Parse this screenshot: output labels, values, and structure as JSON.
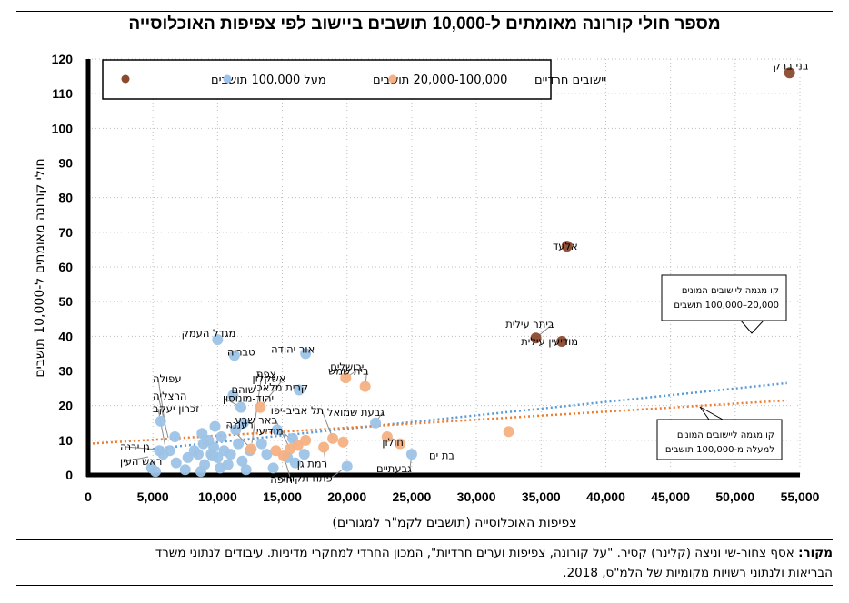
{
  "chart_data": {
    "type": "scatter",
    "title": "מספר חולי קורונה מאומתים ל-10,000 תושבים ביישוב לפי צפיפות האוכלוסייה",
    "xlabel": "צפיפות האוכלוסייה (תושבים לקמ\"ר למגורים)",
    "ylabel": "חולי קורונה מאומתים ל-10,000 תושבים",
    "xlim": [
      0,
      55000
    ],
    "ylim": [
      0,
      120
    ],
    "x_ticks": [
      "0",
      "5,000",
      "10,000",
      "15,000",
      "20,000",
      "25,000",
      "30,000",
      "35,000",
      "40,000",
      "45,000",
      "50,000",
      "55,000"
    ],
    "y_ticks": [
      "0",
      "10",
      "20",
      "30",
      "40",
      "50",
      "60",
      "70",
      "80",
      "90",
      "100",
      "110",
      "120"
    ],
    "grid": "dotted",
    "legend_position": "top",
    "series": [
      {
        "name": "יישובים חרדיים",
        "color": "#8B4A2E",
        "points": [
          {
            "x": 54200,
            "y": 116,
            "label": "בני ברק"
          },
          {
            "x": 37000,
            "y": 66,
            "label": "אלעד"
          },
          {
            "x": 34600,
            "y": 39.5,
            "label": "ביתר עילית"
          },
          {
            "x": 36600,
            "y": 38.5,
            "label": "מודיעין עילית"
          }
        ]
      },
      {
        "name": "20,000-100,000 תושבים",
        "color": "#9DC3E6",
        "points": [
          {
            "x": 10000,
            "y": 39,
            "label": "מגדל העמק"
          },
          {
            "x": 11300,
            "y": 34.5,
            "label": "טבריה"
          },
          {
            "x": 16800,
            "y": 35,
            "label": "אור יהודה"
          },
          {
            "x": 16300,
            "y": 24.5,
            "label": "קרית מלאכי"
          },
          {
            "x": 11200,
            "y": 23,
            "label": "שוהם"
          },
          {
            "x": 11800,
            "y": 19.5,
            "label": "יהוד-מונוסון"
          },
          {
            "x": 22200,
            "y": 15,
            "label": "גבעת שמואל"
          },
          {
            "x": 25000,
            "y": 6,
            "label": "גבעתיים"
          },
          {
            "x": 20000,
            "y": 2.5,
            "label": "פתח תקווה"
          },
          {
            "x": 5600,
            "y": 15.5
          },
          {
            "x": 6300,
            "y": 7
          },
          {
            "x": 5500,
            "y": 7
          },
          {
            "x": 4900,
            "y": 2
          },
          {
            "x": 5200,
            "y": 1
          },
          {
            "x": 5800,
            "y": 6
          },
          {
            "x": 6800,
            "y": 3.5
          },
          {
            "x": 7500,
            "y": 1.5
          },
          {
            "x": 7700,
            "y": 5
          },
          {
            "x": 8200,
            "y": 7
          },
          {
            "x": 8500,
            "y": 6
          },
          {
            "x": 8800,
            "y": 12
          },
          {
            "x": 8900,
            "y": 9
          },
          {
            "x": 8700,
            "y": 1
          },
          {
            "x": 9000,
            "y": 3
          },
          {
            "x": 9300,
            "y": 10
          },
          {
            "x": 9500,
            "y": 6
          },
          {
            "x": 9700,
            "y": 8
          },
          {
            "x": 9800,
            "y": 14
          },
          {
            "x": 10000,
            "y": 5
          },
          {
            "x": 10200,
            "y": 2
          },
          {
            "x": 10300,
            "y": 11
          },
          {
            "x": 10500,
            "y": 7
          },
          {
            "x": 10800,
            "y": 3
          },
          {
            "x": 11000,
            "y": 6
          },
          {
            "x": 11400,
            "y": 13
          },
          {
            "x": 11600,
            "y": 9
          },
          {
            "x": 11900,
            "y": 4
          },
          {
            "x": 12000,
            "y": 15
          },
          {
            "x": 12200,
            "y": 1.5
          },
          {
            "x": 12500,
            "y": 7
          },
          {
            "x": 13400,
            "y": 9
          },
          {
            "x": 13800,
            "y": 6
          },
          {
            "x": 14300,
            "y": 2
          },
          {
            "x": 14600,
            "y": 13
          },
          {
            "x": 15400,
            "y": 5
          },
          {
            "x": 15800,
            "y": 10.5
          },
          {
            "x": 16000,
            "y": 3.5
          },
          {
            "x": 16700,
            "y": 6
          },
          {
            "x": 6700,
            "y": 11
          },
          {
            "x": 9600,
            "y": 5.5
          }
        ]
      },
      {
        "name": "מעל 100,000 תושבים",
        "color": "#F4B183",
        "points": [
          {
            "x": 19900,
            "y": 28,
            "label": "ירושלים"
          },
          {
            "x": 21400,
            "y": 25.5,
            "label": "בית שמש"
          },
          {
            "x": 13300,
            "y": 19.5,
            "label": "אשקלון"
          },
          {
            "x": 12600,
            "y": 7.5,
            "label": "רעננה"
          },
          {
            "x": 15600,
            "y": 7.5,
            "label": "באר שבע"
          },
          {
            "x": 16200,
            "y": 8.5,
            "label": "מודיעין"
          },
          {
            "x": 18900,
            "y": 10.5,
            "label": "תל אביב-יפו"
          },
          {
            "x": 19700,
            "y": 9.5
          },
          {
            "x": 18200,
            "y": 8,
            "label": "רמת גן"
          },
          {
            "x": 15100,
            "y": 5.5,
            "label": "חיפה"
          },
          {
            "x": 23100,
            "y": 11,
            "label": "חולון"
          },
          {
            "x": 24100,
            "y": 9,
            "label": "בת ים"
          },
          {
            "x": 32500,
            "y": 12.5
          },
          {
            "x": 14500,
            "y": 7
          },
          {
            "x": 16800,
            "y": 10
          }
        ]
      }
    ],
    "unlabeled_point_labels": [
      "עפולה",
      "הרצליה",
      "זכרון יעקב",
      "צפת",
      "גן יבנה",
      "ראש העין"
    ],
    "trendlines": [
      {
        "series": "20,000-100,000 תושבים",
        "color": "#5B9BD5",
        "from": [
          5000,
          7.5
        ],
        "to": [
          54000,
          26.5
        ],
        "annotation": [
          "קו מגמה ליישובים המונים",
          "20,000–100,000 תושבים"
        ]
      },
      {
        "series": "מעל 100,000 תושבים",
        "color": "#ED7D31",
        "from": [
          0,
          9
        ],
        "to": [
          54000,
          21.5
        ],
        "annotation": [
          "קו מגמה ליישובים המונים",
          "למעלה מ-100,000 תושבים"
        ]
      }
    ]
  },
  "source": {
    "label": "מקור:",
    "text_line1": " אסף צחור-שי וניצה (קלינר) קסיר. \"על קורונה, צפיפות וערים חרדיות\", המכון החרדי למחקרי מדיניות. עיבודים לנתוני משרד",
    "text_line2": "הבריאות ולנתוני רשויות מקומיות של הלמ\"ס, 2018."
  }
}
